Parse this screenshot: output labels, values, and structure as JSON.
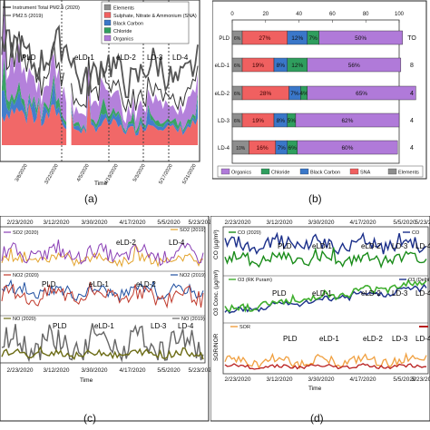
{
  "panel_labels": {
    "a": "(a)",
    "b": "(b)",
    "c": "(c)",
    "d": "(d)"
  },
  "colors": {
    "organics": "#b07ad9",
    "chloride": "#2f9e5e",
    "black_carbon": "#3a77c9",
    "sna": "#f06060",
    "elements": "#8e8e8e",
    "so2_2020": "#8a3fb5",
    "so2_2019": "#e3a32c",
    "no2_2020": "#c0392b",
    "no2_2019": "#1f4fa0",
    "no_2020": "#6b6b14",
    "no_2019": "#666666",
    "co_2020": "#1a8c1a",
    "co_2019": "#1b2f8a",
    "o3_2020": "#3fae2e",
    "o3_2019": "#1b2f8a",
    "sor": "#f0a040",
    "nor": "#b81e1e"
  },
  "chart_data": [
    {
      "id": "a",
      "type": "area",
      "xlabel": "Time",
      "x": [
        "3/8/2020",
        "3/22/2020",
        "4/5/2020",
        "4/19/2020",
        "5/3/2020",
        "5/17/2020",
        "5/31/2020"
      ],
      "legend": [
        "Elements",
        "Sulphate, Nitrate & Ammonium (SNA)",
        "Black Carbon",
        "Chloride",
        "Organics"
      ],
      "line_legend": [
        "Instrument Total PM2.5 (2020)",
        "PM2.5 (2019)"
      ],
      "phases": [
        "PLD",
        "eLD-1",
        "eLD-2",
        "LD-3",
        "LD-4"
      ]
    },
    {
      "id": "b",
      "type": "bar",
      "categories": [
        "PLD",
        "eLD-1",
        "eLD-2",
        "LD-3",
        "LD-4"
      ],
      "right_labels": [
        "TO",
        "8",
        "4",
        "4",
        "4"
      ],
      "series": [
        {
          "name": "Elements",
          "values": [
            6,
            6,
            6,
            6,
            10
          ]
        },
        {
          "name": "SNA",
          "values": [
            27,
            19,
            28,
            19,
            16
          ]
        },
        {
          "name": "Black Carbon",
          "values": [
            12,
            8,
            7,
            8,
            7
          ]
        },
        {
          "name": "Chloride",
          "values": [
            7,
            12,
            4,
            5,
            6
          ]
        },
        {
          "name": "Organics",
          "values": [
            50,
            56,
            65,
            62,
            60
          ]
        }
      ],
      "labels": [
        [
          "6%",
          "27%",
          "12%",
          "7%",
          "50%"
        ],
        [
          "6%",
          "19%",
          "8%",
          "12%",
          "56%"
        ],
        [
          "6%",
          "28%",
          "7%",
          "4%",
          "65%"
        ],
        [
          "6%",
          "19%",
          "8%",
          "5%",
          "62%"
        ],
        [
          "10%",
          "16%",
          "7%",
          "6%",
          "60%"
        ]
      ],
      "xticks": [
        "0",
        "20",
        "40",
        "60",
        "80",
        "100"
      ],
      "legend": [
        "Organics",
        "Chloride",
        "Black Carbon",
        "SNA",
        "Elements"
      ]
    },
    {
      "id": "c",
      "type": "line",
      "xlabel": "Time",
      "x": [
        "2/23/2020",
        "3/12/2020",
        "3/30/2020",
        "4/17/2020",
        "5/5/2020",
        "5/23/2020"
      ],
      "legends": [
        "SO2 (2020)",
        "SO2 (2019)",
        "NO2 (2020)",
        "NO2 (2019)",
        "NO (2020)",
        "NO (2019)"
      ],
      "phases": [
        "PLD",
        "eLD-1",
        "eLD-2",
        "LD-3",
        "LD-4"
      ]
    },
    {
      "id": "d",
      "type": "line",
      "xlabel": "Time",
      "x": [
        "2/23/2020",
        "3/12/2020",
        "3/30/2020",
        "4/17/2020",
        "5/5/2020",
        "5/23/2020"
      ],
      "ylabels": [
        "CO (µg/m³)",
        "O3 Conc. (µg/m³)",
        "SOR/NOR"
      ],
      "legends": [
        "CO (2020)",
        "CO",
        "O3 (RK Puram)",
        "O3 (Delhi)",
        "SOR"
      ],
      "phases": [
        "PLD",
        "eLD-1",
        "eLD-2",
        "LD-3",
        "LD-4"
      ]
    }
  ]
}
